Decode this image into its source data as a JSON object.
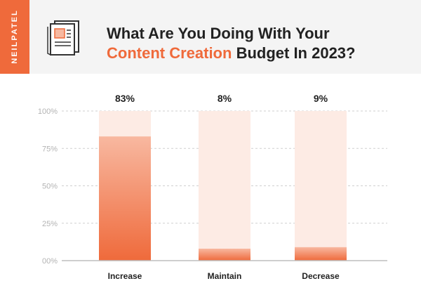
{
  "brand": {
    "name": "NEILPATEL"
  },
  "icons": {
    "document": "newspaper-icon"
  },
  "colors": {
    "accent": "#ef6a3b",
    "track": "#fdebe4",
    "grid": "#cfcfcf",
    "header_bg": "#f4f4f4"
  },
  "header": {
    "title_line1": "What Are You Doing With Your",
    "title_highlight": "Content Creation",
    "title_line2_rest": " Budget In 2023?"
  },
  "chart_data": {
    "type": "bar",
    "categories": [
      "Increase",
      "Maintain",
      "Decrease"
    ],
    "values": [
      83,
      8,
      9
    ],
    "value_labels": [
      "83%",
      "8%",
      "9%"
    ],
    "ylim": [
      0,
      100
    ],
    "yticks": [
      0,
      25,
      50,
      75,
      100
    ],
    "ytick_labels": [
      "00%",
      "25%",
      "50%",
      "75%",
      "100%"
    ],
    "grid": true
  }
}
